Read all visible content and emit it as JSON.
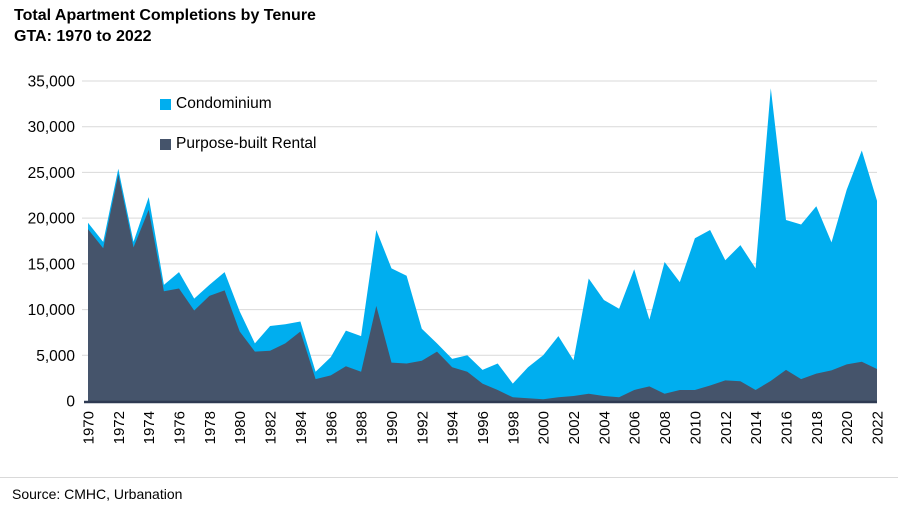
{
  "header": {
    "title_line1": "Total Apartment Completions by Tenure",
    "title_line2": "GTA: 1970 to 2022"
  },
  "legend": {
    "items": [
      {
        "label": "Condominium",
        "color": "#00AEEF"
      },
      {
        "label": "Purpose-built Rental",
        "color": "#45546B"
      }
    ]
  },
  "source": {
    "label": "Source: CMHC, Urbanation"
  },
  "colors": {
    "condominium": "#00AEEF",
    "purpose_built_rental": "#45546B",
    "gridline": "#D9D9D9",
    "axis_line": "#2E3A52",
    "text": "#000000",
    "background": "#FFFFFF"
  },
  "chart_data": {
    "type": "area",
    "stacked": true,
    "title": "Total Apartment Completions by Tenure, GTA: 1970 to 2022",
    "xlabel": "",
    "ylabel": "",
    "ylim": [
      0,
      35000
    ],
    "y_tick_step": 5000,
    "grid": "horizontal",
    "legend_position": "top-left-inside",
    "y_tick_labels": [
      "0",
      "5,000",
      "10,000",
      "15,000",
      "20,000",
      "25,000",
      "30,000",
      "35,000"
    ],
    "x_tick_labels": [
      "1970",
      "1972",
      "1974",
      "1976",
      "1978",
      "1980",
      "1982",
      "1984",
      "1986",
      "1988",
      "1990",
      "1992",
      "1994",
      "1996",
      "1998",
      "2000",
      "2002",
      "2004",
      "2006",
      "2008",
      "2010",
      "2012",
      "2014",
      "2016",
      "2018",
      "2020",
      "2022"
    ],
    "x": [
      1970,
      1971,
      1972,
      1973,
      1974,
      1975,
      1976,
      1977,
      1978,
      1979,
      1980,
      1981,
      1982,
      1983,
      1984,
      1985,
      1986,
      1987,
      1988,
      1989,
      1990,
      1991,
      1992,
      1993,
      1994,
      1995,
      1996,
      1997,
      1998,
      1999,
      2000,
      2001,
      2002,
      2003,
      2004,
      2005,
      2006,
      2007,
      2008,
      2009,
      2010,
      2011,
      2012,
      2013,
      2014,
      2015,
      2016,
      2017,
      2018,
      2019,
      2020,
      2021,
      2022
    ],
    "series": [
      {
        "name": "Purpose-built Rental",
        "color": "#45546B",
        "values": [
          18800,
          16700,
          24800,
          16800,
          20900,
          12000,
          12300,
          9900,
          11500,
          12100,
          7600,
          5400,
          5500,
          6300,
          7600,
          2400,
          2800,
          3800,
          3200,
          10400,
          4200,
          4100,
          4400,
          5400,
          3700,
          3200,
          1900,
          1200,
          400,
          300,
          200,
          400,
          550,
          800,
          550,
          400,
          1200,
          1600,
          800,
          1200,
          1200,
          1700,
          2250,
          2150,
          1200,
          2200,
          3400,
          2400,
          3000,
          3350,
          4000,
          4300,
          3500
        ]
      },
      {
        "name": "Condominium",
        "color": "#00AEEF",
        "values": [
          700,
          700,
          600,
          600,
          1400,
          700,
          1800,
          1300,
          1200,
          2000,
          2200,
          900,
          2700,
          2100,
          1100,
          800,
          2000,
          3900,
          3900,
          8300,
          10300,
          9600,
          3500,
          900,
          900,
          1800,
          1500,
          2900,
          1500,
          3400,
          4800,
          6700,
          3900,
          12600,
          10500,
          9700,
          13200,
          7300,
          14400,
          11800,
          16600,
          17000,
          13150,
          14900,
          13300,
          32000,
          16400,
          16900,
          18300,
          14000,
          19100,
          23100,
          18400
        ]
      }
    ]
  }
}
